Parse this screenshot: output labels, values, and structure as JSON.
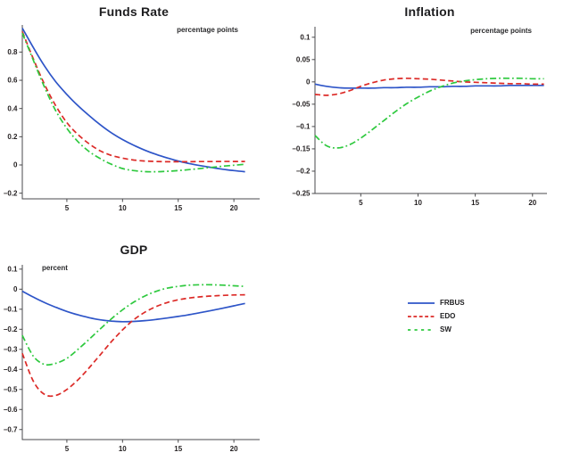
{
  "figure": {
    "background": "#ffffff",
    "axis_color": "#4a4a4c",
    "text_color": "#231f20"
  },
  "legend": {
    "items": [
      {
        "label": "FRBUS",
        "color": "#2e55c8",
        "style": "solid"
      },
      {
        "label": "EDO",
        "color": "#dc2a27",
        "style": "dashed"
      },
      {
        "label": "SW",
        "color": "#2fc93f",
        "style": "dash-dot"
      }
    ]
  },
  "chart_data": [
    {
      "type": "line",
      "title": "Funds Rate",
      "unit_label": "percentage points",
      "unit_label_position": "top-right",
      "xlabel": "",
      "ylabel": "",
      "xlim": [
        1,
        21
      ],
      "ylim": [
        -0.24,
        0.992
      ],
      "xticks": [
        5,
        10,
        15,
        20
      ],
      "yticks": [
        -0.2,
        0,
        0.2,
        0.4,
        0.6,
        0.8
      ],
      "grid": false,
      "x": [
        1,
        2,
        3,
        4,
        5,
        6,
        7,
        8,
        9,
        10,
        11,
        12,
        13,
        14,
        15,
        16,
        17,
        18,
        19,
        20,
        21
      ],
      "series": [
        {
          "name": "FRBUS",
          "values": [
            0.97,
            0.83,
            0.7,
            0.59,
            0.5,
            0.42,
            0.35,
            0.285,
            0.228,
            0.18,
            0.14,
            0.105,
            0.075,
            0.05,
            0.028,
            0.01,
            -0.005,
            -0.018,
            -0.03,
            -0.04,
            -0.048
          ]
        },
        {
          "name": "EDO",
          "values": [
            0.945,
            0.75,
            0.57,
            0.42,
            0.3,
            0.215,
            0.15,
            0.1,
            0.068,
            0.048,
            0.035,
            0.028,
            0.025,
            0.023,
            0.023,
            0.023,
            0.024,
            0.024,
            0.025,
            0.025,
            0.025
          ]
        },
        {
          "name": "SW",
          "values": [
            0.935,
            0.74,
            0.55,
            0.385,
            0.26,
            0.165,
            0.095,
            0.045,
            0.005,
            -0.025,
            -0.04,
            -0.047,
            -0.048,
            -0.045,
            -0.04,
            -0.033,
            -0.025,
            -0.017,
            -0.009,
            -0.002,
            0.005
          ]
        }
      ]
    },
    {
      "type": "line",
      "title": "Inflation",
      "unit_label": "percentage points",
      "unit_label_position": "top-right",
      "xlabel": "",
      "ylabel": "",
      "xlim": [
        1,
        21
      ],
      "ylim": [
        -0.25,
        0.1235
      ],
      "xticks": [
        5,
        10,
        15,
        20
      ],
      "yticks": [
        -0.25,
        -0.2,
        -0.15,
        -0.1,
        -0.05,
        0,
        0.05,
        0.1
      ],
      "grid": false,
      "x": [
        1,
        2,
        3,
        4,
        5,
        6,
        7,
        8,
        9,
        10,
        11,
        12,
        13,
        14,
        15,
        16,
        17,
        18,
        19,
        20,
        21
      ],
      "series": [
        {
          "name": "FRBUS",
          "values": [
            -0.005,
            -0.01,
            -0.013,
            -0.014,
            -0.014,
            -0.014,
            -0.013,
            -0.013,
            -0.012,
            -0.012,
            -0.011,
            -0.011,
            -0.01,
            -0.01,
            -0.009,
            -0.009,
            -0.009,
            -0.008,
            -0.008,
            -0.008,
            -0.008
          ]
        },
        {
          "name": "EDO",
          "values": [
            -0.028,
            -0.03,
            -0.027,
            -0.02,
            -0.01,
            -0.002,
            0.004,
            0.007,
            0.008,
            0.007,
            0.006,
            0.004,
            0.002,
            0.0,
            -0.001,
            -0.002,
            -0.003,
            -0.004,
            -0.004,
            -0.005,
            -0.005
          ]
        },
        {
          "name": "SW",
          "values": [
            -0.12,
            -0.143,
            -0.148,
            -0.141,
            -0.126,
            -0.107,
            -0.087,
            -0.067,
            -0.049,
            -0.034,
            -0.021,
            -0.011,
            -0.003,
            0.002,
            0.005,
            0.007,
            0.008,
            0.008,
            0.008,
            0.007,
            0.007
          ]
        }
      ]
    },
    {
      "type": "line",
      "title": "GDP",
      "unit_label": "percent",
      "unit_label_position": "top-left",
      "xlabel": "",
      "ylabel": "",
      "xlim": [
        1,
        21
      ],
      "ylim": [
        -0.75,
        0.1215
      ],
      "xticks": [
        5,
        10,
        15,
        20
      ],
      "yticks": [
        -0.7,
        -0.6,
        -0.5,
        -0.4,
        -0.3,
        -0.2,
        -0.1,
        0,
        0.1
      ],
      "grid": false,
      "x": [
        1,
        2,
        3,
        4,
        5,
        6,
        7,
        8,
        9,
        10,
        11,
        12,
        13,
        14,
        15,
        16,
        17,
        18,
        19,
        20,
        21
      ],
      "series": [
        {
          "name": "FRBUS",
          "values": [
            -0.01,
            -0.04,
            -0.067,
            -0.09,
            -0.111,
            -0.128,
            -0.142,
            -0.153,
            -0.159,
            -0.162,
            -0.161,
            -0.157,
            -0.151,
            -0.144,
            -0.136,
            -0.127,
            -0.117,
            -0.106,
            -0.095,
            -0.083,
            -0.071
          ]
        },
        {
          "name": "EDO",
          "values": [
            -0.32,
            -0.46,
            -0.525,
            -0.53,
            -0.5,
            -0.452,
            -0.392,
            -0.327,
            -0.262,
            -0.203,
            -0.153,
            -0.115,
            -0.087,
            -0.067,
            -0.053,
            -0.044,
            -0.038,
            -0.034,
            -0.031,
            -0.029,
            -0.028
          ]
        },
        {
          "name": "SW",
          "values": [
            -0.23,
            -0.335,
            -0.375,
            -0.37,
            -0.345,
            -0.3,
            -0.25,
            -0.198,
            -0.148,
            -0.103,
            -0.065,
            -0.034,
            -0.011,
            0.005,
            0.014,
            0.02,
            0.022,
            0.022,
            0.02,
            0.017,
            0.014
          ]
        }
      ]
    }
  ]
}
